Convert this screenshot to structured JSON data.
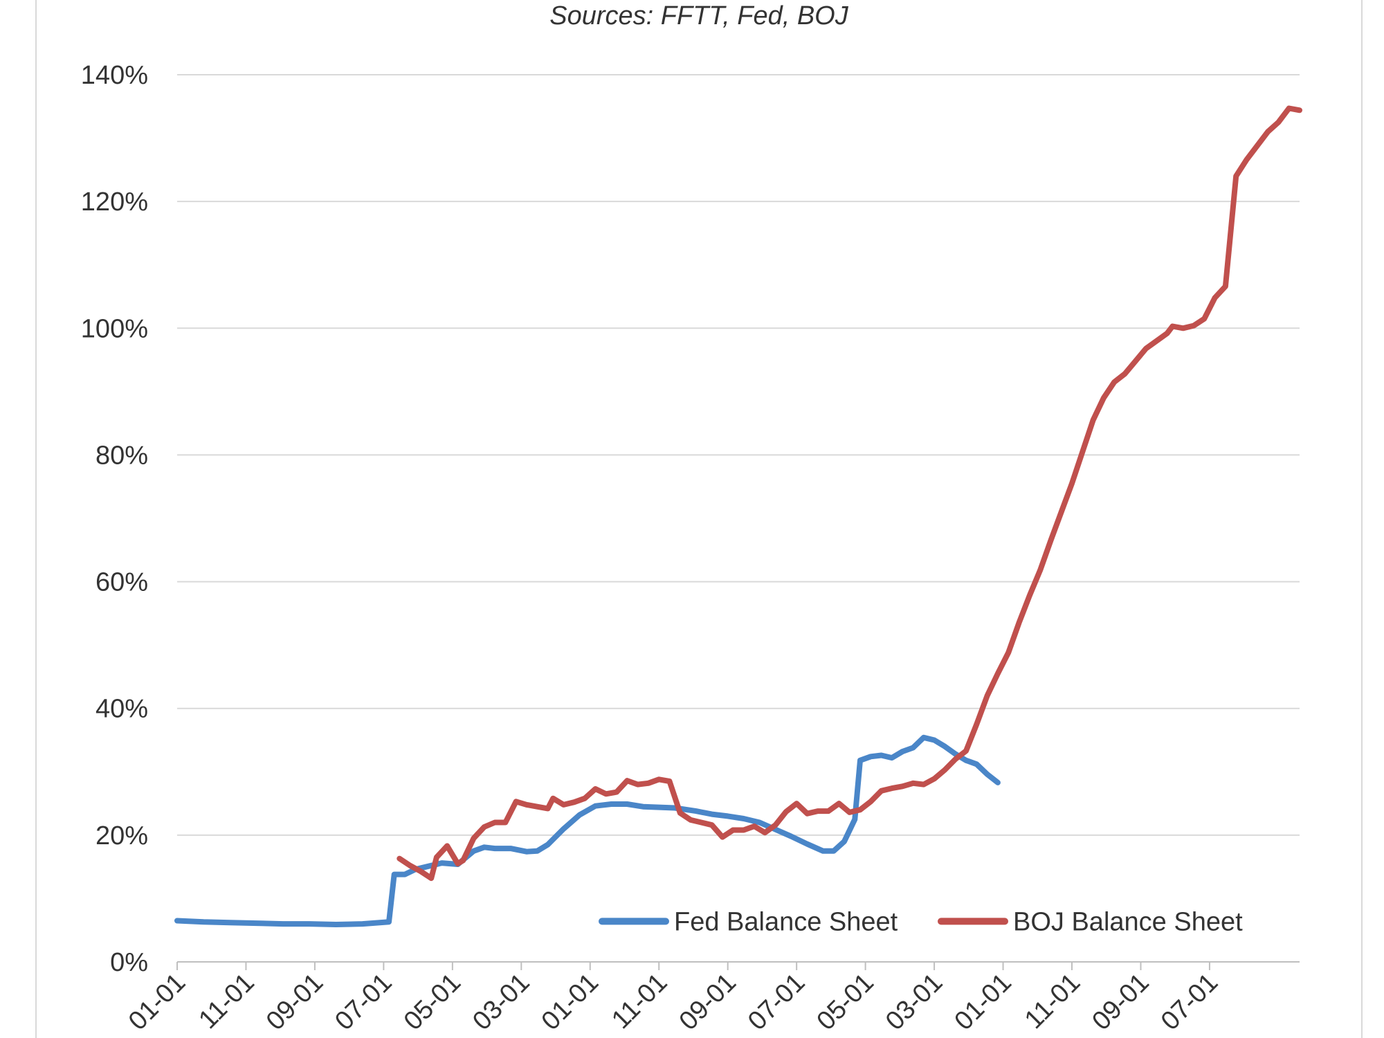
{
  "chart_data": {
    "type": "line",
    "title": "",
    "subtitle": "Sources: FFTT, Fed, BOJ",
    "xlabel": "",
    "ylabel": "",
    "ylim": [
      0,
      140
    ],
    "y_ticks": [
      "0%",
      "20%",
      "40%",
      "60%",
      "80%",
      "100%",
      "120%",
      "140%"
    ],
    "x_tick_labels": [
      "01-01",
      "11-01",
      "09-01",
      "07-01",
      "05-01",
      "03-01",
      "01-01",
      "11-01",
      "09-01",
      "07-01",
      "05-01",
      "03-01",
      "01-01",
      "11-01",
      "09-01",
      "07-01"
    ],
    "grid": true,
    "legend_position": "bottom-right",
    "series": [
      {
        "name": "Fed Balance Sheet",
        "color": "#4a86c8",
        "points": [
          [
            0,
            6.5
          ],
          [
            5,
            6.3
          ],
          [
            10,
            6.2
          ],
          [
            15,
            6.1
          ],
          [
            20,
            6.0
          ],
          [
            25,
            6.0
          ],
          [
            30,
            5.9
          ],
          [
            35,
            6.0
          ],
          [
            40,
            6.3
          ],
          [
            41,
            13.8
          ],
          [
            43,
            13.8
          ],
          [
            45,
            14.6
          ],
          [
            48,
            15.2
          ],
          [
            50,
            15.6
          ],
          [
            53,
            15.4
          ],
          [
            56,
            17.5
          ],
          [
            58,
            18.1
          ],
          [
            60,
            17.9
          ],
          [
            63,
            17.9
          ],
          [
            66,
            17.4
          ],
          [
            68,
            17.5
          ],
          [
            70,
            18.5
          ],
          [
            73,
            21.0
          ],
          [
            76,
            23.2
          ],
          [
            79,
            24.6
          ],
          [
            82,
            24.9
          ],
          [
            85,
            24.9
          ],
          [
            88,
            24.5
          ],
          [
            91,
            24.4
          ],
          [
            94,
            24.3
          ],
          [
            98,
            23.8
          ],
          [
            101,
            23.3
          ],
          [
            104,
            23.0
          ],
          [
            107,
            22.6
          ],
          [
            110,
            22.0
          ],
          [
            113,
            20.9
          ],
          [
            116,
            19.8
          ],
          [
            119,
            18.6
          ],
          [
            122,
            17.5
          ],
          [
            124,
            17.5
          ],
          [
            126,
            19.0
          ],
          [
            128,
            22.5
          ],
          [
            129,
            31.8
          ],
          [
            131,
            32.4
          ],
          [
            133,
            32.6
          ],
          [
            135,
            32.2
          ],
          [
            137,
            33.2
          ],
          [
            139,
            33.8
          ],
          [
            141,
            35.4
          ],
          [
            143,
            35.0
          ],
          [
            145,
            34.0
          ],
          [
            147,
            32.8
          ],
          [
            149,
            31.8
          ],
          [
            151,
            31.2
          ],
          [
            153,
            29.6
          ],
          [
            155,
            28.3
          ]
        ]
      },
      {
        "name": "BOJ Balance Sheet",
        "color": "#c0504d",
        "points": [
          [
            42,
            16.3
          ],
          [
            44,
            15.2
          ],
          [
            46,
            14.3
          ],
          [
            48,
            13.2
          ],
          [
            49,
            16.5
          ],
          [
            51,
            18.3
          ],
          [
            53,
            15.5
          ],
          [
            54,
            16.0
          ],
          [
            56,
            19.5
          ],
          [
            58,
            21.3
          ],
          [
            60,
            22.0
          ],
          [
            62,
            22.0
          ],
          [
            64,
            25.3
          ],
          [
            66,
            24.8
          ],
          [
            68,
            24.5
          ],
          [
            70,
            24.2
          ],
          [
            71,
            25.8
          ],
          [
            73,
            24.8
          ],
          [
            75,
            25.2
          ],
          [
            77,
            25.8
          ],
          [
            79,
            27.3
          ],
          [
            81,
            26.5
          ],
          [
            83,
            26.8
          ],
          [
            85,
            28.6
          ],
          [
            87,
            28.0
          ],
          [
            89,
            28.2
          ],
          [
            91,
            28.8
          ],
          [
            93,
            28.5
          ],
          [
            95,
            23.5
          ],
          [
            97,
            22.4
          ],
          [
            99,
            22.0
          ],
          [
            101,
            21.6
          ],
          [
            103,
            19.7
          ],
          [
            105,
            20.8
          ],
          [
            107,
            20.8
          ],
          [
            109,
            21.4
          ],
          [
            111,
            20.4
          ],
          [
            113,
            21.6
          ],
          [
            115,
            23.7
          ],
          [
            117,
            25.0
          ],
          [
            119,
            23.4
          ],
          [
            121,
            23.8
          ],
          [
            123,
            23.8
          ],
          [
            125,
            25.0
          ],
          [
            127,
            23.6
          ],
          [
            129,
            24.0
          ],
          [
            131,
            25.3
          ],
          [
            133,
            27.0
          ],
          [
            135,
            27.4
          ],
          [
            137,
            27.7
          ],
          [
            139,
            28.2
          ],
          [
            141,
            28.0
          ],
          [
            143,
            28.9
          ],
          [
            145,
            30.3
          ],
          [
            147,
            32.0
          ],
          [
            149,
            33.3
          ],
          [
            151,
            37.5
          ],
          [
            153,
            42.0
          ],
          [
            155,
            45.5
          ],
          [
            157,
            48.8
          ],
          [
            159,
            53.5
          ],
          [
            161,
            57.8
          ],
          [
            163,
            61.8
          ],
          [
            165,
            66.5
          ],
          [
            167,
            71.0
          ],
          [
            169,
            75.5
          ],
          [
            171,
            80.5
          ],
          [
            173,
            85.5
          ],
          [
            175,
            89.0
          ],
          [
            177,
            91.5
          ],
          [
            179,
            92.8
          ],
          [
            181,
            94.8
          ],
          [
            183,
            96.8
          ],
          [
            185,
            98.0
          ],
          [
            187,
            99.2
          ],
          [
            188,
            100.3
          ],
          [
            190,
            100.0
          ],
          [
            192,
            100.4
          ],
          [
            194,
            101.5
          ],
          [
            196,
            104.8
          ],
          [
            198,
            106.6
          ],
          [
            200,
            124.0
          ],
          [
            202,
            126.6
          ],
          [
            204,
            128.8
          ],
          [
            206,
            131.0
          ],
          [
            208,
            132.5
          ],
          [
            210,
            134.7
          ],
          [
            212,
            134.4
          ]
        ]
      }
    ]
  }
}
